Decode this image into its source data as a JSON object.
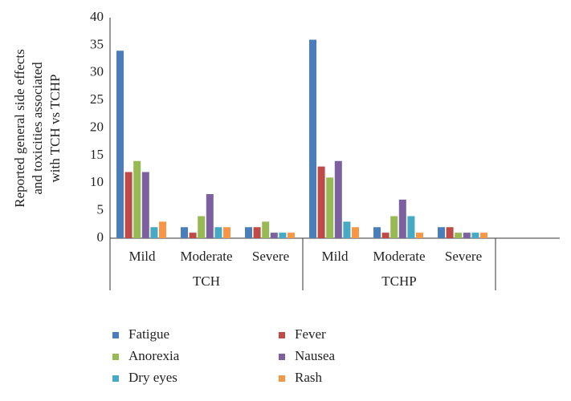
{
  "chart_data": {
    "type": "bar",
    "y_label": [
      "Reported general side effects",
      "and toxicities associated",
      "with TCH vs TCHP"
    ],
    "groups": [
      {
        "label": "TCH",
        "categories": [
          "Mild",
          "Moderate",
          "Severe"
        ]
      },
      {
        "label": "TCHP",
        "categories": [
          "Mild",
          "Moderate",
          "Severe"
        ]
      }
    ],
    "series": [
      {
        "name": "Fatigue",
        "color": "#4a7ebb",
        "values": [
          34,
          2,
          2,
          36,
          2,
          2
        ]
      },
      {
        "name": "Fever",
        "color": "#be4b48",
        "values": [
          12,
          1,
          2,
          13,
          1,
          2
        ]
      },
      {
        "name": "Anorexia",
        "color": "#98b954",
        "values": [
          14,
          4,
          3,
          11,
          4,
          1
        ]
      },
      {
        "name": "Nausea",
        "color": "#7d60a0",
        "values": [
          12,
          8,
          1,
          14,
          7,
          1
        ]
      },
      {
        "name": "Dry eyes",
        "color": "#46aac5",
        "values": [
          2,
          2,
          1,
          3,
          4,
          1
        ]
      },
      {
        "name": "Rash",
        "color": "#f79646",
        "values": [
          3,
          2,
          1,
          2,
          1,
          1
        ]
      }
    ],
    "ylim": [
      0,
      40
    ],
    "yticks": [
      0,
      5,
      10,
      15,
      20,
      25,
      30,
      35,
      40
    ],
    "grid": false
  }
}
